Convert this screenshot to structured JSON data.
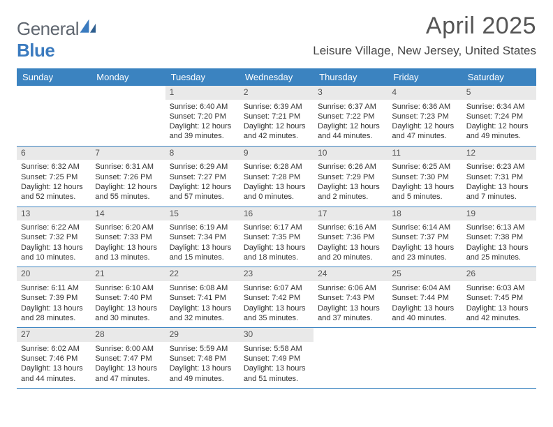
{
  "brand": {
    "part1": "General",
    "part2": "Blue"
  },
  "title": "April 2025",
  "location": "Leisure Village, New Jersey, United States",
  "colors": {
    "header_bg": "#3b83c0",
    "header_text": "#ffffff",
    "daynum_bg": "#e9e9e9",
    "daynum_text": "#555555",
    "body_text": "#333333",
    "title_text": "#555555",
    "rule": "#3b83c0"
  },
  "weekdays": [
    "Sunday",
    "Monday",
    "Tuesday",
    "Wednesday",
    "Thursday",
    "Friday",
    "Saturday"
  ],
  "layout": {
    "first_weekday_index": 2,
    "days_in_month": 30,
    "columns": 7
  },
  "days": {
    "1": {
      "sunrise": "6:40 AM",
      "sunset": "7:20 PM",
      "daylight": "12 hours and 39 minutes."
    },
    "2": {
      "sunrise": "6:39 AM",
      "sunset": "7:21 PM",
      "daylight": "12 hours and 42 minutes."
    },
    "3": {
      "sunrise": "6:37 AM",
      "sunset": "7:22 PM",
      "daylight": "12 hours and 44 minutes."
    },
    "4": {
      "sunrise": "6:36 AM",
      "sunset": "7:23 PM",
      "daylight": "12 hours and 47 minutes."
    },
    "5": {
      "sunrise": "6:34 AM",
      "sunset": "7:24 PM",
      "daylight": "12 hours and 49 minutes."
    },
    "6": {
      "sunrise": "6:32 AM",
      "sunset": "7:25 PM",
      "daylight": "12 hours and 52 minutes."
    },
    "7": {
      "sunrise": "6:31 AM",
      "sunset": "7:26 PM",
      "daylight": "12 hours and 55 minutes."
    },
    "8": {
      "sunrise": "6:29 AM",
      "sunset": "7:27 PM",
      "daylight": "12 hours and 57 minutes."
    },
    "9": {
      "sunrise": "6:28 AM",
      "sunset": "7:28 PM",
      "daylight": "13 hours and 0 minutes."
    },
    "10": {
      "sunrise": "6:26 AM",
      "sunset": "7:29 PM",
      "daylight": "13 hours and 2 minutes."
    },
    "11": {
      "sunrise": "6:25 AM",
      "sunset": "7:30 PM",
      "daylight": "13 hours and 5 minutes."
    },
    "12": {
      "sunrise": "6:23 AM",
      "sunset": "7:31 PM",
      "daylight": "13 hours and 7 minutes."
    },
    "13": {
      "sunrise": "6:22 AM",
      "sunset": "7:32 PM",
      "daylight": "13 hours and 10 minutes."
    },
    "14": {
      "sunrise": "6:20 AM",
      "sunset": "7:33 PM",
      "daylight": "13 hours and 13 minutes."
    },
    "15": {
      "sunrise": "6:19 AM",
      "sunset": "7:34 PM",
      "daylight": "13 hours and 15 minutes."
    },
    "16": {
      "sunrise": "6:17 AM",
      "sunset": "7:35 PM",
      "daylight": "13 hours and 18 minutes."
    },
    "17": {
      "sunrise": "6:16 AM",
      "sunset": "7:36 PM",
      "daylight": "13 hours and 20 minutes."
    },
    "18": {
      "sunrise": "6:14 AM",
      "sunset": "7:37 PM",
      "daylight": "13 hours and 23 minutes."
    },
    "19": {
      "sunrise": "6:13 AM",
      "sunset": "7:38 PM",
      "daylight": "13 hours and 25 minutes."
    },
    "20": {
      "sunrise": "6:11 AM",
      "sunset": "7:39 PM",
      "daylight": "13 hours and 28 minutes."
    },
    "21": {
      "sunrise": "6:10 AM",
      "sunset": "7:40 PM",
      "daylight": "13 hours and 30 minutes."
    },
    "22": {
      "sunrise": "6:08 AM",
      "sunset": "7:41 PM",
      "daylight": "13 hours and 32 minutes."
    },
    "23": {
      "sunrise": "6:07 AM",
      "sunset": "7:42 PM",
      "daylight": "13 hours and 35 minutes."
    },
    "24": {
      "sunrise": "6:06 AM",
      "sunset": "7:43 PM",
      "daylight": "13 hours and 37 minutes."
    },
    "25": {
      "sunrise": "6:04 AM",
      "sunset": "7:44 PM",
      "daylight": "13 hours and 40 minutes."
    },
    "26": {
      "sunrise": "6:03 AM",
      "sunset": "7:45 PM",
      "daylight": "13 hours and 42 minutes."
    },
    "27": {
      "sunrise": "6:02 AM",
      "sunset": "7:46 PM",
      "daylight": "13 hours and 44 minutes."
    },
    "28": {
      "sunrise": "6:00 AM",
      "sunset": "7:47 PM",
      "daylight": "13 hours and 47 minutes."
    },
    "29": {
      "sunrise": "5:59 AM",
      "sunset": "7:48 PM",
      "daylight": "13 hours and 49 minutes."
    },
    "30": {
      "sunrise": "5:58 AM",
      "sunset": "7:49 PM",
      "daylight": "13 hours and 51 minutes."
    }
  },
  "labels": {
    "sunrise": "Sunrise:",
    "sunset": "Sunset:",
    "daylight": "Daylight:"
  }
}
